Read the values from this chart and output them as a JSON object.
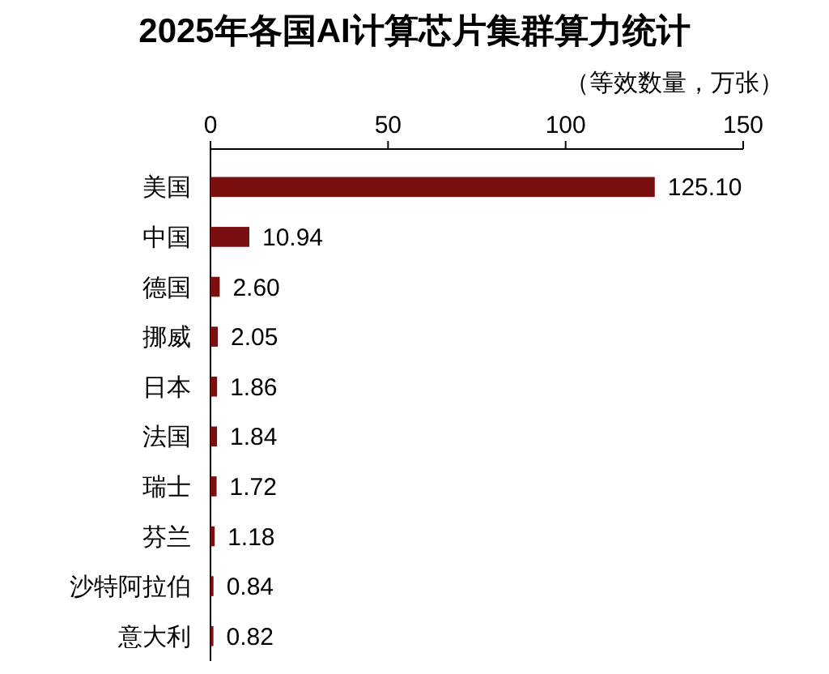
{
  "chart_data": {
    "type": "bar",
    "orientation": "horizontal",
    "title": "2025年各国AI计算芯片集群算力统计",
    "xlabel": "（等效数量，万张）",
    "categories": [
      "美国",
      "中国",
      "德国",
      "挪威",
      "日本",
      "法国",
      "瑞士",
      "芬兰",
      "沙特阿拉伯",
      "意大利"
    ],
    "values": [
      125.1,
      10.94,
      2.6,
      2.05,
      1.86,
      1.84,
      1.72,
      1.18,
      0.84,
      0.82
    ],
    "value_labels": [
      "125.10",
      "10.94",
      "2.60",
      "2.05",
      "1.86",
      "1.84",
      "1.72",
      "1.18",
      "0.84",
      "0.82"
    ],
    "color": "#7a0f0f",
    "xlim": [
      0,
      150
    ],
    "xticks": [
      0,
      50,
      100,
      150
    ],
    "grid": false
  }
}
